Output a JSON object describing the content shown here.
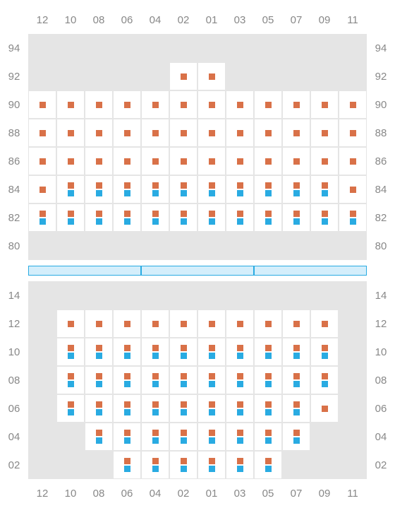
{
  "colors": {
    "backgroundEmpty": "#e5e5e5",
    "backgroundFilled": "#ffffff",
    "gridBorder": "#e5e5e5",
    "labelText": "#888888",
    "orangeMarker": "#d97148",
    "blueMarker": "#29abe2",
    "dividerFill": "#d4eefb",
    "dividerBorder": "#29abe2"
  },
  "markerSize": 9,
  "cellSize": 40,
  "labelFontSize": 15,
  "columns": [
    "12",
    "10",
    "08",
    "06",
    "04",
    "02",
    "01",
    "03",
    "05",
    "07",
    "09",
    "11"
  ],
  "upper": {
    "rows": [
      "94",
      "92",
      "90",
      "88",
      "86",
      "84",
      "82",
      "80"
    ],
    "cells": [
      [
        "e",
        "e",
        "e",
        "e",
        "e",
        "e",
        "e",
        "e",
        "e",
        "e",
        "e",
        "e"
      ],
      [
        "e",
        "e",
        "e",
        "e",
        "e",
        "o",
        "o",
        "e",
        "e",
        "e",
        "e",
        "e"
      ],
      [
        "o",
        "o",
        "o",
        "o",
        "o",
        "o",
        "o",
        "o",
        "o",
        "o",
        "o",
        "o"
      ],
      [
        "o",
        "o",
        "o",
        "o",
        "o",
        "o",
        "o",
        "o",
        "o",
        "o",
        "o",
        "o"
      ],
      [
        "o",
        "o",
        "o",
        "o",
        "o",
        "o",
        "o",
        "o",
        "o",
        "o",
        "o",
        "o"
      ],
      [
        "o",
        "ob",
        "ob",
        "ob",
        "ob",
        "ob",
        "ob",
        "ob",
        "ob",
        "ob",
        "ob",
        "o"
      ],
      [
        "ob",
        "ob",
        "ob",
        "ob",
        "ob",
        "ob",
        "ob",
        "ob",
        "ob",
        "ob",
        "ob",
        "ob"
      ],
      [
        "e",
        "e",
        "e",
        "e",
        "e",
        "e",
        "e",
        "e",
        "e",
        "e",
        "e",
        "e"
      ]
    ]
  },
  "dividerSegments": 3,
  "lower": {
    "rows": [
      "14",
      "12",
      "10",
      "08",
      "06",
      "04",
      "02"
    ],
    "cells": [
      [
        "e",
        "e",
        "e",
        "e",
        "e",
        "e",
        "e",
        "e",
        "e",
        "e",
        "e",
        "e"
      ],
      [
        "e",
        "o",
        "o",
        "o",
        "o",
        "o",
        "o",
        "o",
        "o",
        "o",
        "o",
        "e"
      ],
      [
        "e",
        "ob",
        "ob",
        "ob",
        "ob",
        "ob",
        "ob",
        "ob",
        "ob",
        "ob",
        "ob",
        "e"
      ],
      [
        "e",
        "ob",
        "ob",
        "ob",
        "ob",
        "ob",
        "ob",
        "ob",
        "ob",
        "ob",
        "ob",
        "e"
      ],
      [
        "e",
        "ob",
        "ob",
        "ob",
        "ob",
        "ob",
        "ob",
        "ob",
        "ob",
        "ob",
        "o",
        "e"
      ],
      [
        "e",
        "e",
        "ob",
        "ob",
        "ob",
        "ob",
        "ob",
        "ob",
        "ob",
        "ob",
        "e",
        "e"
      ],
      [
        "e",
        "e",
        "e",
        "ob",
        "ob",
        "ob",
        "ob",
        "ob",
        "ob",
        "e",
        "e",
        "e"
      ]
    ]
  }
}
